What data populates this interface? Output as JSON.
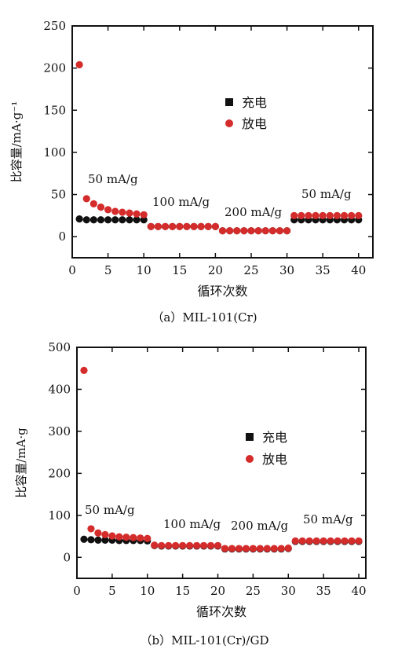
{
  "chart_data": [
    {
      "type": "scatter",
      "id": "a",
      "caption": "（a）MIL-101(Cr)",
      "xlabel": "循环次数",
      "ylabel": "比容量/mA·g⁻¹",
      "xlim": [
        0,
        42
      ],
      "ylim": [
        -25,
        250
      ],
      "xticks": [
        0,
        5,
        10,
        15,
        20,
        25,
        30,
        35,
        40
      ],
      "yticks": [
        0,
        50,
        100,
        150,
        200,
        250
      ],
      "legend": {
        "position": "center-right",
        "entries": [
          "充电",
          "放电"
        ]
      },
      "colors": {
        "charge": "#111111",
        "discharge": "#d42b2b"
      },
      "annotations": [
        "50 mA/g",
        "100 mA/g",
        "200 mA/g",
        "50 mA/g"
      ],
      "series": [
        {
          "name": "充电",
          "x": [
            1,
            2,
            3,
            4,
            5,
            6,
            7,
            8,
            9,
            10,
            11,
            12,
            13,
            14,
            15,
            16,
            17,
            18,
            19,
            20,
            21,
            22,
            23,
            24,
            25,
            26,
            27,
            28,
            29,
            30,
            31,
            32,
            33,
            34,
            35,
            36,
            37,
            38,
            39,
            40
          ],
          "y": [
            21,
            20,
            20,
            20,
            20,
            20,
            20,
            20,
            20,
            20,
            12,
            12,
            12,
            12,
            12,
            12,
            12,
            12,
            12,
            12,
            7,
            7,
            7,
            7,
            7,
            7,
            7,
            7,
            7,
            7,
            20,
            20,
            20,
            20,
            20,
            20,
            20,
            20,
            20,
            20
          ]
        },
        {
          "name": "放电",
          "x": [
            1,
            2,
            3,
            4,
            5,
            6,
            7,
            8,
            9,
            10,
            11,
            12,
            13,
            14,
            15,
            16,
            17,
            18,
            19,
            20,
            21,
            22,
            23,
            24,
            25,
            26,
            27,
            28,
            29,
            30,
            31,
            32,
            33,
            34,
            35,
            36,
            37,
            38,
            39,
            40
          ],
          "y": [
            204,
            45,
            39,
            35,
            32,
            30,
            29,
            28,
            27,
            26,
            12,
            12,
            12,
            12,
            12,
            12,
            12,
            12,
            12,
            12,
            7,
            7,
            7,
            7,
            7,
            7,
            7,
            7,
            7,
            7,
            25,
            25,
            25,
            25,
            25,
            25,
            25,
            25,
            25,
            25
          ]
        }
      ]
    },
    {
      "type": "scatter",
      "id": "b",
      "caption": "（b）MIL-101(Cr)/GD",
      "xlabel": "循环次数",
      "ylabel": "比容量/mA·g",
      "xlim": [
        0,
        41
      ],
      "ylim": [
        -50,
        500
      ],
      "xticks": [
        0,
        5,
        10,
        15,
        20,
        25,
        30,
        35,
        40
      ],
      "yticks": [
        0,
        100,
        200,
        300,
        400,
        500
      ],
      "legend": {
        "position": "center-right",
        "entries": [
          "充电",
          "放电"
        ]
      },
      "colors": {
        "charge": "#111111",
        "discharge": "#d42b2b"
      },
      "annotations": [
        "50 mA/g",
        "100 mA/g",
        "200 mA/g",
        "50 mA/g"
      ],
      "series": [
        {
          "name": "充电",
          "x": [
            1,
            2,
            3,
            4,
            5,
            6,
            7,
            8,
            9,
            10,
            11,
            12,
            13,
            14,
            15,
            16,
            17,
            18,
            19,
            20,
            21,
            22,
            23,
            24,
            25,
            26,
            27,
            28,
            29,
            30,
            31,
            32,
            33,
            34,
            35,
            36,
            37,
            38,
            39,
            40
          ],
          "y": [
            43,
            42,
            41,
            41,
            41,
            40,
            40,
            40,
            40,
            39,
            28,
            27,
            27,
            27,
            27,
            27,
            27,
            27,
            27,
            27,
            20,
            20,
            20,
            20,
            20,
            20,
            20,
            20,
            20,
            21,
            38,
            38,
            38,
            38,
            38,
            38,
            38,
            38,
            38,
            38
          ]
        },
        {
          "name": "放电",
          "x": [
            1,
            2,
            3,
            4,
            5,
            6,
            7,
            8,
            9,
            10,
            11,
            12,
            13,
            14,
            15,
            16,
            17,
            18,
            19,
            20,
            21,
            22,
            23,
            24,
            25,
            26,
            27,
            28,
            29,
            30,
            31,
            32,
            33,
            34,
            35,
            36,
            37,
            38,
            39,
            40
          ],
          "y": [
            445,
            68,
            58,
            54,
            51,
            49,
            48,
            47,
            46,
            45,
            29,
            28,
            28,
            28,
            28,
            28,
            28,
            28,
            28,
            28,
            21,
            21,
            21,
            21,
            21,
            21,
            21,
            21,
            21,
            22,
            39,
            39,
            39,
            39,
            39,
            39,
            39,
            39,
            39,
            39
          ]
        }
      ]
    }
  ]
}
